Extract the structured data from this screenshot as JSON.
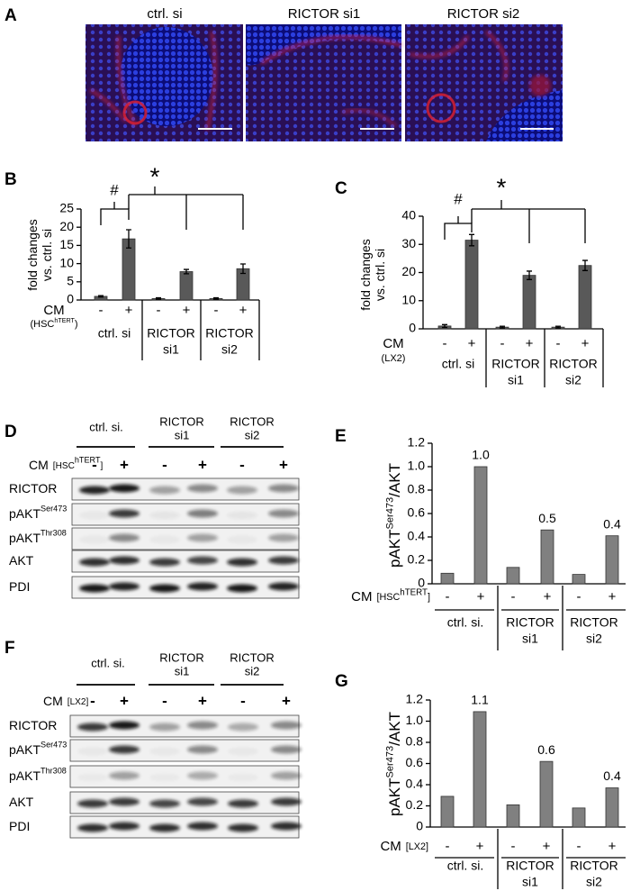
{
  "panel_labels": [
    "A",
    "B",
    "C",
    "D",
    "E",
    "F",
    "G"
  ],
  "micrographs": {
    "labels": [
      "ctrl. si",
      "RICTOR si1",
      "RICTOR si2"
    ]
  },
  "chart_data": [
    {
      "type": "bar",
      "ylabel": [
        [
          {
            "text": "fold changes"
          }
        ],
        [
          {
            "text": "vs. ctrl. si"
          }
        ]
      ],
      "xlabel": [
        [
          {
            "text": "CM"
          }
        ],
        [
          {
            "text": "(HSC"
          },
          {
            "text": "hTERT",
            "sup": true
          },
          {
            "text": ")"
          }
        ]
      ],
      "categories": [
        "-",
        "+",
        "-",
        "+",
        "-",
        "+"
      ],
      "groups": [
        [
          "ctrl. si"
        ],
        [
          "RICTOR",
          "si1"
        ],
        [
          "RICTOR",
          "si2"
        ]
      ],
      "values": [
        1.0,
        16.8,
        0.4,
        7.8,
        0.4,
        8.6
      ],
      "errors": [
        0.2,
        2.5,
        0.2,
        0.6,
        0.2,
        1.3
      ],
      "color": "#595959",
      "ylim": [
        0,
        25
      ],
      "yticks": [
        0,
        5,
        10,
        15,
        20,
        25
      ],
      "annotations": [
        "#",
        "*"
      ]
    },
    {
      "type": "bar",
      "ylabel": [
        [
          {
            "text": "fold changes"
          }
        ],
        [
          {
            "text": "vs. ctrl. si"
          }
        ]
      ],
      "xlabel": [
        [
          {
            "text": "CM"
          }
        ],
        [
          {
            "text": "(LX2)"
          }
        ]
      ],
      "categories": [
        "-",
        "+",
        "-",
        "+",
        "-",
        "+"
      ],
      "groups": [
        [
          "ctrl. si"
        ],
        [
          "RICTOR",
          "si1"
        ],
        [
          "RICTOR",
          "si2"
        ]
      ],
      "values": [
        1.0,
        31.5,
        0.6,
        19.0,
        0.6,
        22.5
      ],
      "errors": [
        0.5,
        2.0,
        0.3,
        1.5,
        0.3,
        1.8
      ],
      "color": "#595959",
      "ylim": [
        0,
        40
      ],
      "yticks": [
        0,
        10,
        20,
        30,
        40
      ],
      "annotations": [
        "#",
        "*"
      ]
    },
    {
      "type": "bar",
      "ylabel": [
        [
          {
            "text": "pAKT"
          },
          {
            "text": "Ser473",
            "sup": true
          },
          {
            "text": "/AKT"
          }
        ]
      ],
      "xlabel": [
        [
          {
            "text": "CM"
          },
          {
            "text": "[HSC",
            "small": true
          },
          {
            "text": "hTERT",
            "sup": true
          },
          {
            "text": "]",
            "small": true
          }
        ]
      ],
      "categories": [
        "-",
        "+",
        "-",
        "+",
        "-",
        "+"
      ],
      "groups": [
        [
          "ctrl. si."
        ],
        [
          "RICTOR",
          "si1"
        ],
        [
          "RICTOR",
          "si2"
        ]
      ],
      "values": [
        0.09,
        1.0,
        0.14,
        0.46,
        0.08,
        0.41
      ],
      "value_labels": [
        null,
        "1.0",
        null,
        "0.5",
        null,
        "0.4"
      ],
      "color": "#808080",
      "ylim": [
        0,
        1.2
      ],
      "yticks": [
        0,
        0.2,
        0.4,
        0.6,
        0.8,
        {
          "value": 1,
          "label": "1.0"
        },
        1.2
      ]
    },
    {
      "type": "bar",
      "ylabel": [
        [
          {
            "text": "pAKT"
          },
          {
            "text": "Ser473",
            "sup": true
          },
          {
            "text": "/AKT"
          }
        ]
      ],
      "xlabel": [
        [
          {
            "text": "CM"
          },
          {
            "text": "[LX2]",
            "small": true
          }
        ]
      ],
      "categories": [
        "-",
        "+",
        "-",
        "+",
        "-",
        "+"
      ],
      "groups": [
        [
          "ctrl. si."
        ],
        [
          "RICTOR",
          "si1"
        ],
        [
          "RICTOR",
          "si2"
        ]
      ],
      "values": [
        0.29,
        1.09,
        0.21,
        0.62,
        0.18,
        0.37
      ],
      "value_labels": [
        null,
        "1.1",
        null,
        "0.6",
        null,
        "0.4"
      ],
      "color": "#808080",
      "ylim": [
        0,
        1.2
      ],
      "yticks": [
        0,
        0.2,
        0.4,
        0.6,
        0.8,
        {
          "value": 1,
          "label": "1.0"
        },
        1.2
      ]
    }
  ],
  "blots": [
    {
      "groups": [
        [
          "ctrl. si."
        ],
        [
          "RICTOR",
          "si1"
        ],
        [
          "RICTOR",
          "si2"
        ]
      ],
      "cm": [
        {
          "text": "CM"
        },
        {
          "text": "[HSC",
          "small": true
        },
        {
          "text": "hTERT",
          "sup": true
        },
        {
          "text": "]",
          "small": true
        }
      ],
      "signs": [
        "-",
        "+",
        "-",
        "+",
        "-",
        "+"
      ],
      "rows": [
        [
          {
            "text": "RICTOR"
          }
        ],
        [
          {
            "text": "pAKT"
          },
          {
            "text": "Ser473",
            "sup": true
          }
        ],
        [
          {
            "text": "pAKT"
          },
          {
            "text": "Thr308",
            "sup": true
          }
        ],
        [
          {
            "text": "AKT"
          }
        ],
        [
          {
            "text": "PDI"
          }
        ]
      ]
    },
    {
      "groups": [
        [
          "ctrl. si."
        ],
        [
          "RICTOR",
          "si1"
        ],
        [
          "RICTOR",
          "si2"
        ]
      ],
      "cm": [
        {
          "text": "CM"
        },
        {
          "text": "[LX2]",
          "small": true
        }
      ],
      "signs": [
        "-",
        "+",
        "-",
        "+",
        "-",
        "+"
      ],
      "rows": [
        [
          {
            "text": "RICTOR"
          }
        ],
        [
          {
            "text": "pAKT"
          },
          {
            "text": "Ser473",
            "sup": true
          }
        ],
        [
          {
            "text": "pAKT"
          },
          {
            "text": "Thr308",
            "sup": true
          }
        ],
        [
          {
            "text": "AKT"
          }
        ],
        [
          {
            "text": "PDI"
          }
        ]
      ]
    }
  ]
}
